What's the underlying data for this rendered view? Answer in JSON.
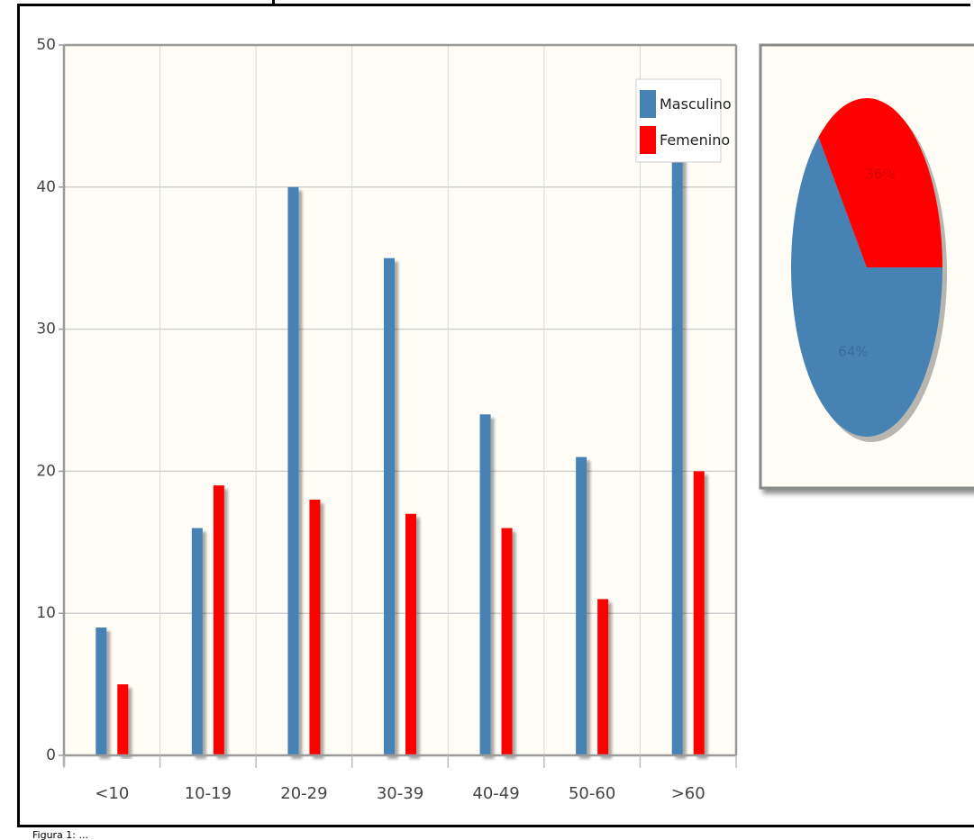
{
  "chart_data": [
    {
      "type": "bar",
      "categories": [
        "<10",
        "10-19",
        "20-29",
        "30-39",
        "40-49",
        "50-60",
        ">60"
      ],
      "series": [
        {
          "name": "Masculino",
          "values": [
            9,
            16,
            40,
            35,
            24,
            21,
            45
          ],
          "color": "#4682b4"
        },
        {
          "name": "Femenino",
          "values": [
            5,
            19,
            18,
            17,
            16,
            11,
            20
          ],
          "color": "#ff0000"
        }
      ],
      "ylim": [
        0,
        50
      ],
      "yticks": [
        0,
        10,
        20,
        30,
        40,
        50
      ],
      "title": "",
      "xlabel": "",
      "ylabel": "",
      "grid": true,
      "legend": "top-right",
      "background": "#fffdf6"
    },
    {
      "type": "pie",
      "slices": [
        {
          "label": "64%",
          "value": 64,
          "color": "#4682b4"
        },
        {
          "label": "36%",
          "value": 36,
          "color": "#ff0000"
        }
      ],
      "background": "#fffdf6"
    }
  ],
  "caption": "Figura 1: ..."
}
